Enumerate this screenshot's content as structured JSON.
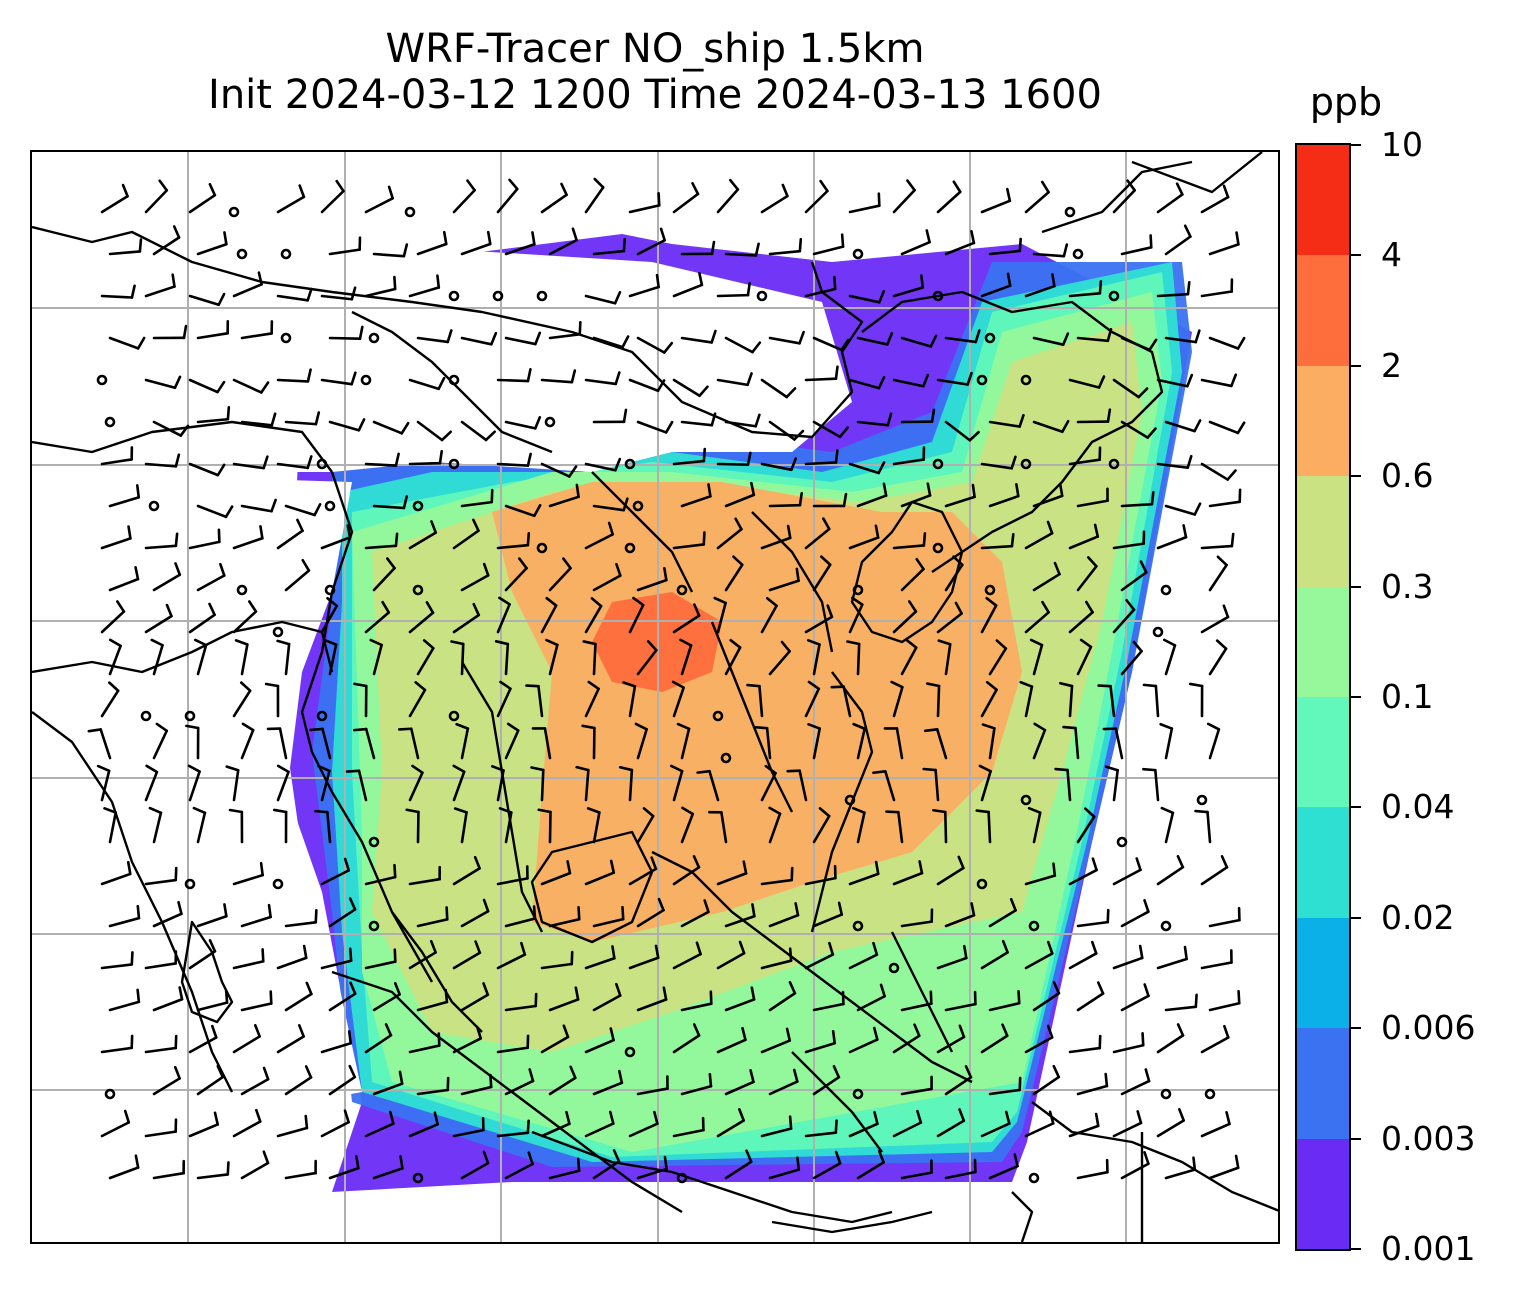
{
  "title": {
    "line1": "WRF-Tracer NO_ship 1.5km",
    "line2": "Init 2024-03-12 1200 Time 2024-03-13 1600"
  },
  "colorbar": {
    "unit": "ppb",
    "ticks": [
      "0.001",
      "0.003",
      "0.006",
      "0.02",
      "0.04",
      "0.1",
      "0.3",
      "0.6",
      "2",
      "4",
      "10"
    ],
    "colors": [
      "#6a2cf5",
      "#3a72f2",
      "#0bb0e8",
      "#2ee0d2",
      "#62f8bb",
      "#96f89a",
      "#cbe283",
      "#fbad62",
      "#fe6d3c",
      "#f62d16"
    ]
  },
  "map": {
    "field_colors": {
      "trace": "#6a2cf5",
      "very_low": "#3a72f2",
      "low": "#2ee0d2",
      "lowmid": "#62f8bb",
      "mid": "#96f89a",
      "midhigh": "#cbe283",
      "high": "#fbad62",
      "peak": "#fe6d3c"
    },
    "grid_color": "#b0b0b0",
    "coast_color": "#000000"
  }
}
